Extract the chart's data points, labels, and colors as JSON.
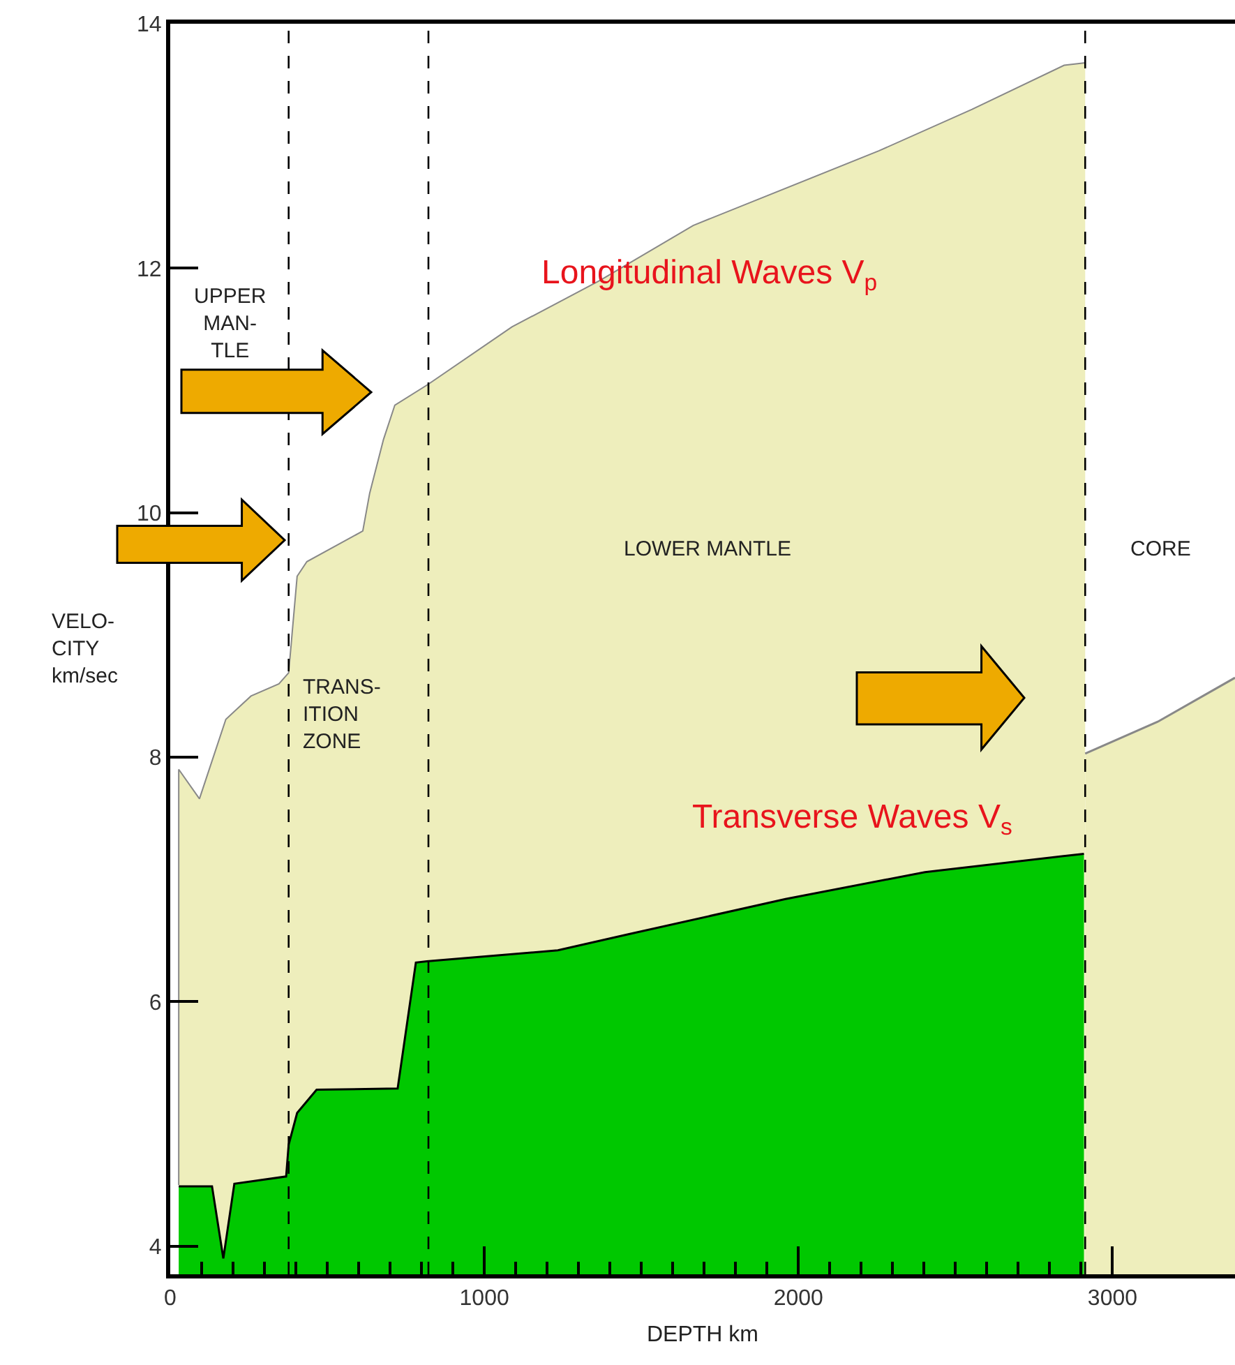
{
  "chart_data": {
    "type": "area",
    "xlabel": "DEPTH km",
    "ylabel": "VELO-\nCITY\nkm/sec",
    "xlim": [
      0,
      3390
    ],
    "ylim": [
      3.77,
      14
    ],
    "xticks": [
      0,
      1000,
      2000,
      3000,
      {
        "value": 100,
        "label": null
      },
      {
        "value": 200,
        "label": null
      },
      {
        "value": 300,
        "label": null
      },
      {
        "value": 400,
        "label": null
      },
      {
        "value": 500,
        "label": null
      },
      {
        "value": 600,
        "label": null
      },
      {
        "value": 700,
        "label": null
      },
      {
        "value": 800,
        "label": null
      },
      {
        "value": 900,
        "label": null
      },
      {
        "value": 1100,
        "label": null
      },
      {
        "value": 1200,
        "label": null
      },
      {
        "value": 1300,
        "label": null
      },
      {
        "value": 1400,
        "label": null
      },
      {
        "value": 1500,
        "label": null
      },
      {
        "value": 1600,
        "label": null
      },
      {
        "value": 1700,
        "label": null
      },
      {
        "value": 1800,
        "label": null
      },
      {
        "value": 1900,
        "label": null
      },
      {
        "value": 2100,
        "label": null
      },
      {
        "value": 2200,
        "label": null
      },
      {
        "value": 2300,
        "label": null
      },
      {
        "value": 2400,
        "label": null
      },
      {
        "value": 2500,
        "label": null
      },
      {
        "value": 2600,
        "label": null
      },
      {
        "value": 2700,
        "label": null
      },
      {
        "value": 2800,
        "label": null
      },
      {
        "value": 2900,
        "label": null
      }
    ],
    "yticks": [
      4,
      6,
      8,
      10,
      12,
      14
    ],
    "grid": false,
    "legend": false,
    "series": [
      {
        "name": "Longitudinal Waves V$_{p}$",
        "color": "#eeeebc",
        "x": [
          27,
          27,
          93,
          177,
          257,
          346,
          377,
          404,
          435,
          613,
          635,
          679,
          715,
          821,
          1088,
          1368,
          1665,
          2256,
          2553,
          2846,
          2913
        ],
        "values": [
          4.5,
          7.9,
          7.66,
          8.31,
          8.5,
          8.6,
          8.69,
          9.48,
          9.6,
          9.85,
          10.16,
          10.6,
          10.88,
          11.05,
          11.52,
          11.9,
          12.35,
          12.96,
          13.3,
          13.66,
          13.68
        ]
      },
      {
        "color": "#eeeebc",
        "x": [
          2913,
          3144,
          3390
        ],
        "values": [
          8.03,
          8.29,
          8.65
        ]
      },
      {
        "name": "Transverse Waves V$_{s}$",
        "color": "#00c800",
        "x": [
          27,
          133,
          169,
          204,
          369,
          377,
          404,
          466,
          724,
          782,
          817,
          1234,
          1456,
          1959,
          2403,
          2909
        ],
        "values": [
          4.49,
          4.49,
          3.9,
          4.51,
          4.57,
          4.83,
          5.09,
          5.28,
          5.29,
          6.32,
          6.33,
          6.42,
          6.55,
          6.84,
          7.06,
          7.21
        ]
      }
    ],
    "ref_lines": [
      {
        "axis": "x",
        "value": 377,
        "line_style": "dashed"
      },
      {
        "axis": "x",
        "value": 822,
        "line_style": "dashed"
      },
      {
        "axis": "x",
        "value": 2913,
        "line_style": "dashed"
      }
    ],
    "annotations": [
      "UPPER\nMAN-\nTLE",
      "TRANS-\nITION\nZONE",
      "LOWER MANTLE",
      "CORE"
    ]
  }
}
